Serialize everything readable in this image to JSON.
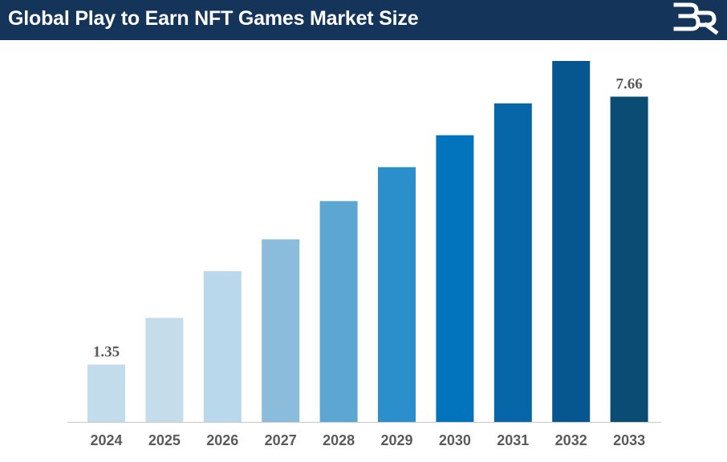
{
  "header": {
    "title": "Global Play to Earn NFT Games Market Size",
    "logo_icon": "br-logo-icon",
    "background": "#14345a"
  },
  "chart_data": {
    "type": "bar",
    "title": "Global Play to Earn NFT Games Market Size",
    "xlabel": "",
    "ylabel": "",
    "categories": [
      "2024",
      "2025",
      "2026",
      "2027",
      "2028",
      "2029",
      "2030",
      "2031",
      "2032",
      "2033"
    ],
    "values": [
      1.35,
      2.45,
      3.55,
      4.3,
      5.2,
      6.0,
      6.75,
      7.5,
      8.5,
      7.66
    ],
    "data_labels": [
      {
        "index": 0,
        "text": "1.35"
      },
      {
        "index": 9,
        "text": "7.66"
      }
    ],
    "ylim": [
      0,
      8.5
    ],
    "grid": false,
    "legend": "none",
    "colors": [
      "#c3dceb",
      "#c5dcea",
      "#bad8ec",
      "#8bbcdb",
      "#5ca6d2",
      "#2b8fcc",
      "#0273bd",
      "#0666a8",
      "#065690",
      "#0b4c75"
    ]
  }
}
